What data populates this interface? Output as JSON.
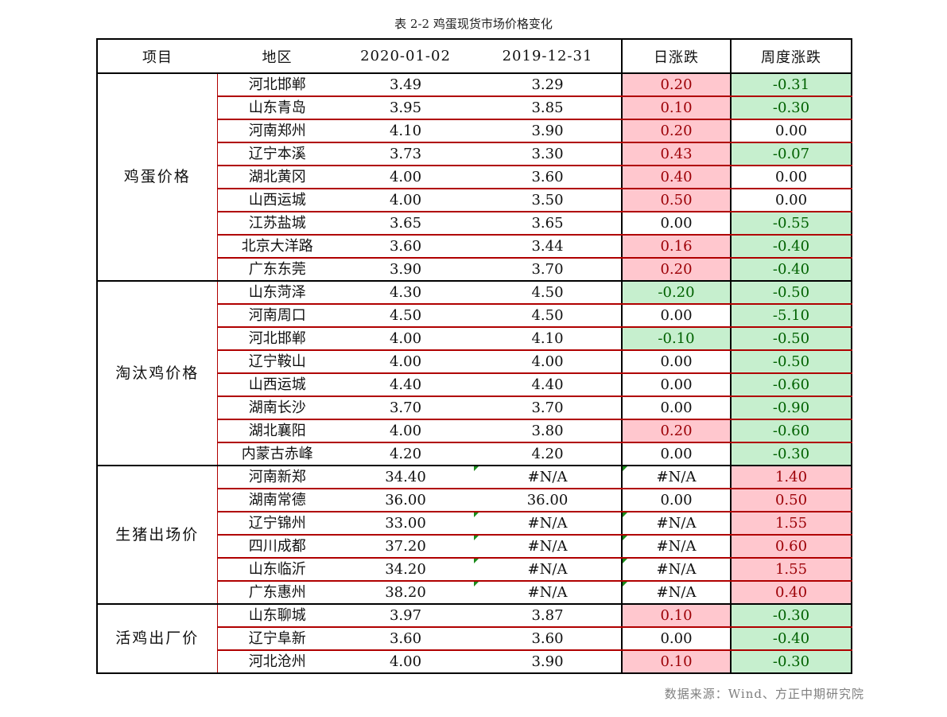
{
  "title": "表 2-2 鸡蛋现货市场价格变化",
  "headers": [
    "项目",
    "地区",
    "2020-01-02",
    "2019-12-31",
    "日涨跌",
    "周度涨跌"
  ],
  "colors": {
    "rise_bg": "#ffc7ce",
    "rise_text": "#9c0006",
    "fall_bg": "#c6efce",
    "fall_text": "#006100",
    "row_rule": "#b00000",
    "source_text": "#7f7f7f"
  },
  "groups": [
    {
      "name": "鸡蛋价格",
      "rows": [
        {
          "region": "河北邯郸",
          "current": "3.49",
          "previous": "3.29",
          "daily": "0.20",
          "daily_state": "up",
          "weekly": "-0.31",
          "weekly_state": "down"
        },
        {
          "region": "山东青岛",
          "current": "3.95",
          "previous": "3.85",
          "daily": "0.10",
          "daily_state": "up",
          "weekly": "-0.30",
          "weekly_state": "down"
        },
        {
          "region": "河南郑州",
          "current": "4.10",
          "previous": "3.90",
          "daily": "0.20",
          "daily_state": "up",
          "weekly": "0.00",
          "weekly_state": "flat"
        },
        {
          "region": "辽宁本溪",
          "current": "3.73",
          "previous": "3.30",
          "daily": "0.43",
          "daily_state": "up",
          "weekly": "-0.07",
          "weekly_state": "down"
        },
        {
          "region": "湖北黄冈",
          "current": "4.00",
          "previous": "3.60",
          "daily": "0.40",
          "daily_state": "up",
          "weekly": "0.00",
          "weekly_state": "flat"
        },
        {
          "region": "山西运城",
          "current": "4.00",
          "previous": "3.50",
          "daily": "0.50",
          "daily_state": "up",
          "weekly": "0.00",
          "weekly_state": "flat"
        },
        {
          "region": "江苏盐城",
          "current": "3.65",
          "previous": "3.65",
          "daily": "0.00",
          "daily_state": "flat",
          "weekly": "-0.55",
          "weekly_state": "down"
        },
        {
          "region": "北京大洋路",
          "current": "3.60",
          "previous": "3.44",
          "daily": "0.16",
          "daily_state": "up",
          "weekly": "-0.40",
          "weekly_state": "down"
        },
        {
          "region": "广东东莞",
          "current": "3.90",
          "previous": "3.70",
          "daily": "0.20",
          "daily_state": "up",
          "weekly": "-0.40",
          "weekly_state": "down"
        }
      ]
    },
    {
      "name": "淘汰鸡价格",
      "rows": [
        {
          "region": "山东菏泽",
          "current": "4.30",
          "previous": "4.50",
          "daily": "-0.20",
          "daily_state": "down",
          "weekly": "-0.50",
          "weekly_state": "down"
        },
        {
          "region": "河南周口",
          "current": "4.50",
          "previous": "4.50",
          "daily": "0.00",
          "daily_state": "flat",
          "weekly": "-5.10",
          "weekly_state": "down"
        },
        {
          "region": "河北邯郸",
          "current": "4.00",
          "previous": "4.10",
          "daily": "-0.10",
          "daily_state": "down",
          "weekly": "-0.50",
          "weekly_state": "down"
        },
        {
          "region": "辽宁鞍山",
          "current": "4.00",
          "previous": "4.00",
          "daily": "0.00",
          "daily_state": "flat",
          "weekly": "-0.50",
          "weekly_state": "down"
        },
        {
          "region": "山西运城",
          "current": "4.40",
          "previous": "4.40",
          "daily": "0.00",
          "daily_state": "flat",
          "weekly": "-0.60",
          "weekly_state": "down"
        },
        {
          "region": "湖南长沙",
          "current": "3.70",
          "previous": "3.70",
          "daily": "0.00",
          "daily_state": "flat",
          "weekly": "-0.90",
          "weekly_state": "down"
        },
        {
          "region": "湖北襄阳",
          "current": "4.00",
          "previous": "3.80",
          "daily": "0.20",
          "daily_state": "up",
          "weekly": "-0.60",
          "weekly_state": "down"
        },
        {
          "region": "内蒙古赤峰",
          "current": "4.20",
          "previous": "4.20",
          "daily": "0.00",
          "daily_state": "flat",
          "weekly": "-0.30",
          "weekly_state": "down"
        }
      ]
    },
    {
      "name": "生猪出场价",
      "rows": [
        {
          "region": "河南新郑",
          "current": "34.40",
          "previous": "#N/A",
          "previous_mark": true,
          "daily": "#N/A",
          "daily_state": "flat",
          "daily_mark": true,
          "weekly": "1.40",
          "weekly_state": "up"
        },
        {
          "region": "湖南常德",
          "current": "36.00",
          "previous": "36.00",
          "daily": "0.00",
          "daily_state": "flat",
          "weekly": "0.50",
          "weekly_state": "up"
        },
        {
          "region": "辽宁锦州",
          "current": "33.00",
          "previous": "#N/A",
          "previous_mark": true,
          "daily": "#N/A",
          "daily_state": "flat",
          "daily_mark": true,
          "weekly": "1.55",
          "weekly_state": "up"
        },
        {
          "region": "四川成都",
          "current": "37.20",
          "previous": "#N/A",
          "previous_mark": true,
          "daily": "#N/A",
          "daily_state": "flat",
          "daily_mark": true,
          "weekly": "0.60",
          "weekly_state": "up"
        },
        {
          "region": "山东临沂",
          "current": "34.20",
          "previous": "#N/A",
          "previous_mark": true,
          "daily": "#N/A",
          "daily_state": "flat",
          "daily_mark": true,
          "weekly": "1.55",
          "weekly_state": "up"
        },
        {
          "region": "广东惠州",
          "current": "38.20",
          "previous": "#N/A",
          "previous_mark": true,
          "daily": "#N/A",
          "daily_state": "flat",
          "daily_mark": true,
          "weekly": "0.40",
          "weekly_state": "up"
        }
      ]
    },
    {
      "name": "活鸡出厂价",
      "rows": [
        {
          "region": "山东聊城",
          "current": "3.97",
          "previous": "3.87",
          "daily": "0.10",
          "daily_state": "up",
          "weekly": "-0.30",
          "weekly_state": "down"
        },
        {
          "region": "辽宁阜新",
          "current": "3.60",
          "previous": "3.60",
          "daily": "0.00",
          "daily_state": "flat",
          "weekly": "-0.40",
          "weekly_state": "down"
        },
        {
          "region": "河北沧州",
          "current": "4.00",
          "previous": "3.90",
          "daily": "0.10",
          "daily_state": "up",
          "weekly": "-0.30",
          "weekly_state": "down"
        }
      ]
    }
  ],
  "source": "数据来源：Wind、方正中期研究院"
}
